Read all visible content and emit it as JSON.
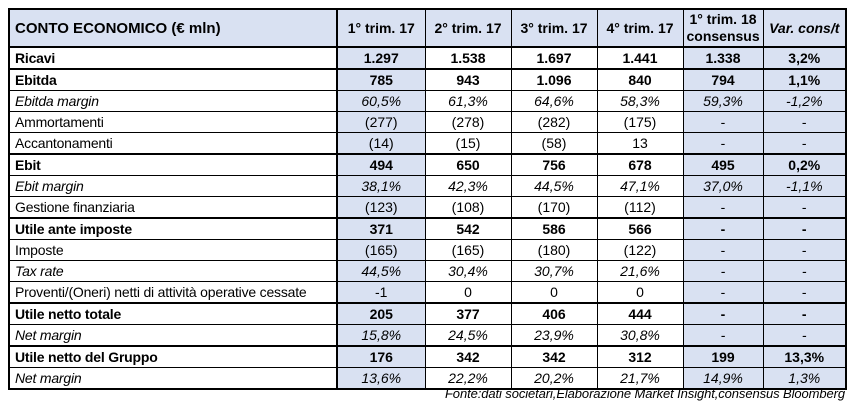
{
  "table": {
    "title": "CONTO ECONOMICO (€ mln)",
    "columns": [
      {
        "label": "1° trim. 17",
        "italic": false
      },
      {
        "label": "2° trim. 17",
        "italic": false
      },
      {
        "label": "3° trim. 17",
        "italic": false
      },
      {
        "label": "4° trim. 17",
        "italic": false
      },
      {
        "label": "1° trim. 18\nconsensus",
        "italic": false
      },
      {
        "label": "Var. cons/t",
        "italic": true
      }
    ],
    "shaded_value_columns": [
      0,
      4,
      5
    ],
    "rows": [
      {
        "label": "Ricavi",
        "style": "bold",
        "values": [
          "1.297",
          "1.538",
          "1.697",
          "1.441",
          "1.338",
          "3,2%"
        ]
      },
      {
        "label": "Ebitda",
        "style": "bold",
        "values": [
          "785",
          "943",
          "1.096",
          "840",
          "794",
          "1,1%"
        ]
      },
      {
        "label": "Ebitda margin",
        "style": "italic",
        "values": [
          "60,5%",
          "61,3%",
          "64,6%",
          "58,3%",
          "59,3%",
          "-1,2%"
        ]
      },
      {
        "label": "Ammortamenti",
        "style": "normal",
        "values": [
          "(277)",
          "(278)",
          "(282)",
          "(175)",
          "-",
          "-"
        ]
      },
      {
        "label": "Accantonamenti",
        "style": "normal",
        "values": [
          "(14)",
          "(15)",
          "(58)",
          "13",
          "-",
          "-"
        ]
      },
      {
        "label": "Ebit",
        "style": "bold",
        "values": [
          "494",
          "650",
          "756",
          "678",
          "495",
          "0,2%"
        ]
      },
      {
        "label": "Ebit margin",
        "style": "italic",
        "values": [
          "38,1%",
          "42,3%",
          "44,5%",
          "47,1%",
          "37,0%",
          "-1,1%"
        ]
      },
      {
        "label": "Gestione finanziaria",
        "style": "normal",
        "values": [
          "(123)",
          "(108)",
          "(170)",
          "(112)",
          "-",
          "-"
        ]
      },
      {
        "label": "Utile ante imposte",
        "style": "bold",
        "values": [
          "371",
          "542",
          "586",
          "566",
          "-",
          "-"
        ]
      },
      {
        "label": "Imposte",
        "style": "normal",
        "values": [
          "(165)",
          "(165)",
          "(180)",
          "(122)",
          "-",
          "-"
        ]
      },
      {
        "label": "Tax rate",
        "style": "italic",
        "values": [
          "44,5%",
          "30,4%",
          "30,7%",
          "21,6%",
          "-",
          "-"
        ]
      },
      {
        "label": "Proventi/(Oneri) netti di attività operative cessate",
        "style": "normal",
        "values": [
          "-1",
          "0",
          "0",
          "0",
          "-",
          "-"
        ]
      },
      {
        "label": "Utile netto totale",
        "style": "bold",
        "values": [
          "205",
          "377",
          "406",
          "444",
          "-",
          "-"
        ]
      },
      {
        "label": "Net margin",
        "style": "italic",
        "values": [
          "15,8%",
          "24,5%",
          "23,9%",
          "30,8%",
          "-",
          "-"
        ]
      },
      {
        "label": "Utile netto del Gruppo",
        "style": "bold",
        "values": [
          "176",
          "342",
          "342",
          "312",
          "199",
          "13,3%"
        ]
      },
      {
        "label": "Net margin",
        "style": "italic",
        "values": [
          "13,6%",
          "22,2%",
          "20,2%",
          "21,7%",
          "14,9%",
          "1,3%"
        ]
      }
    ],
    "footer": "Fonte:dati societari,Elaborazione Market Insight,consensus Bloomberg",
    "colors": {
      "shaded_fill": "#D9E1F2",
      "border": "#000000",
      "background": "#FFFFFF",
      "text": "#000000"
    }
  }
}
